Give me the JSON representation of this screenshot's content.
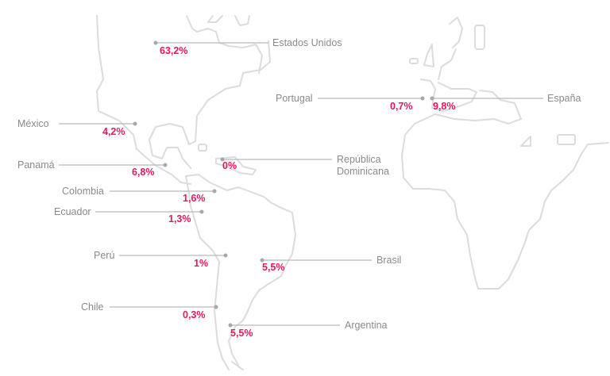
{
  "countries": {
    "usa": {
      "name": "Estados Unidos",
      "value": "63,2%"
    },
    "portugal": {
      "name": "Portugal",
      "value": "0,7%"
    },
    "spain": {
      "name": "España",
      "value": "9,8%"
    },
    "mexico": {
      "name": "México",
      "value": "4,2%"
    },
    "dominican": {
      "name_line1": "República",
      "name_line2": "Dominicana",
      "value": "0%"
    },
    "panama": {
      "name": "Panamá",
      "value": "6,8%"
    },
    "colombia": {
      "name": "Colombia",
      "value": "1,6%"
    },
    "ecuador": {
      "name": "Ecuador",
      "value": "1,3%"
    },
    "peru": {
      "name": "Perú",
      "value": "1%"
    },
    "brazil": {
      "name": "Brasil",
      "value": "5,5%"
    },
    "chile": {
      "name": "Chile",
      "value": "0,3%"
    },
    "argentina": {
      "name": "Argentina",
      "value": "5,5%"
    }
  },
  "colors": {
    "accent": "#e8175d",
    "label": "#8a8a8a",
    "leader": "#b9b9b9",
    "coastline": "#dcdcdc"
  }
}
